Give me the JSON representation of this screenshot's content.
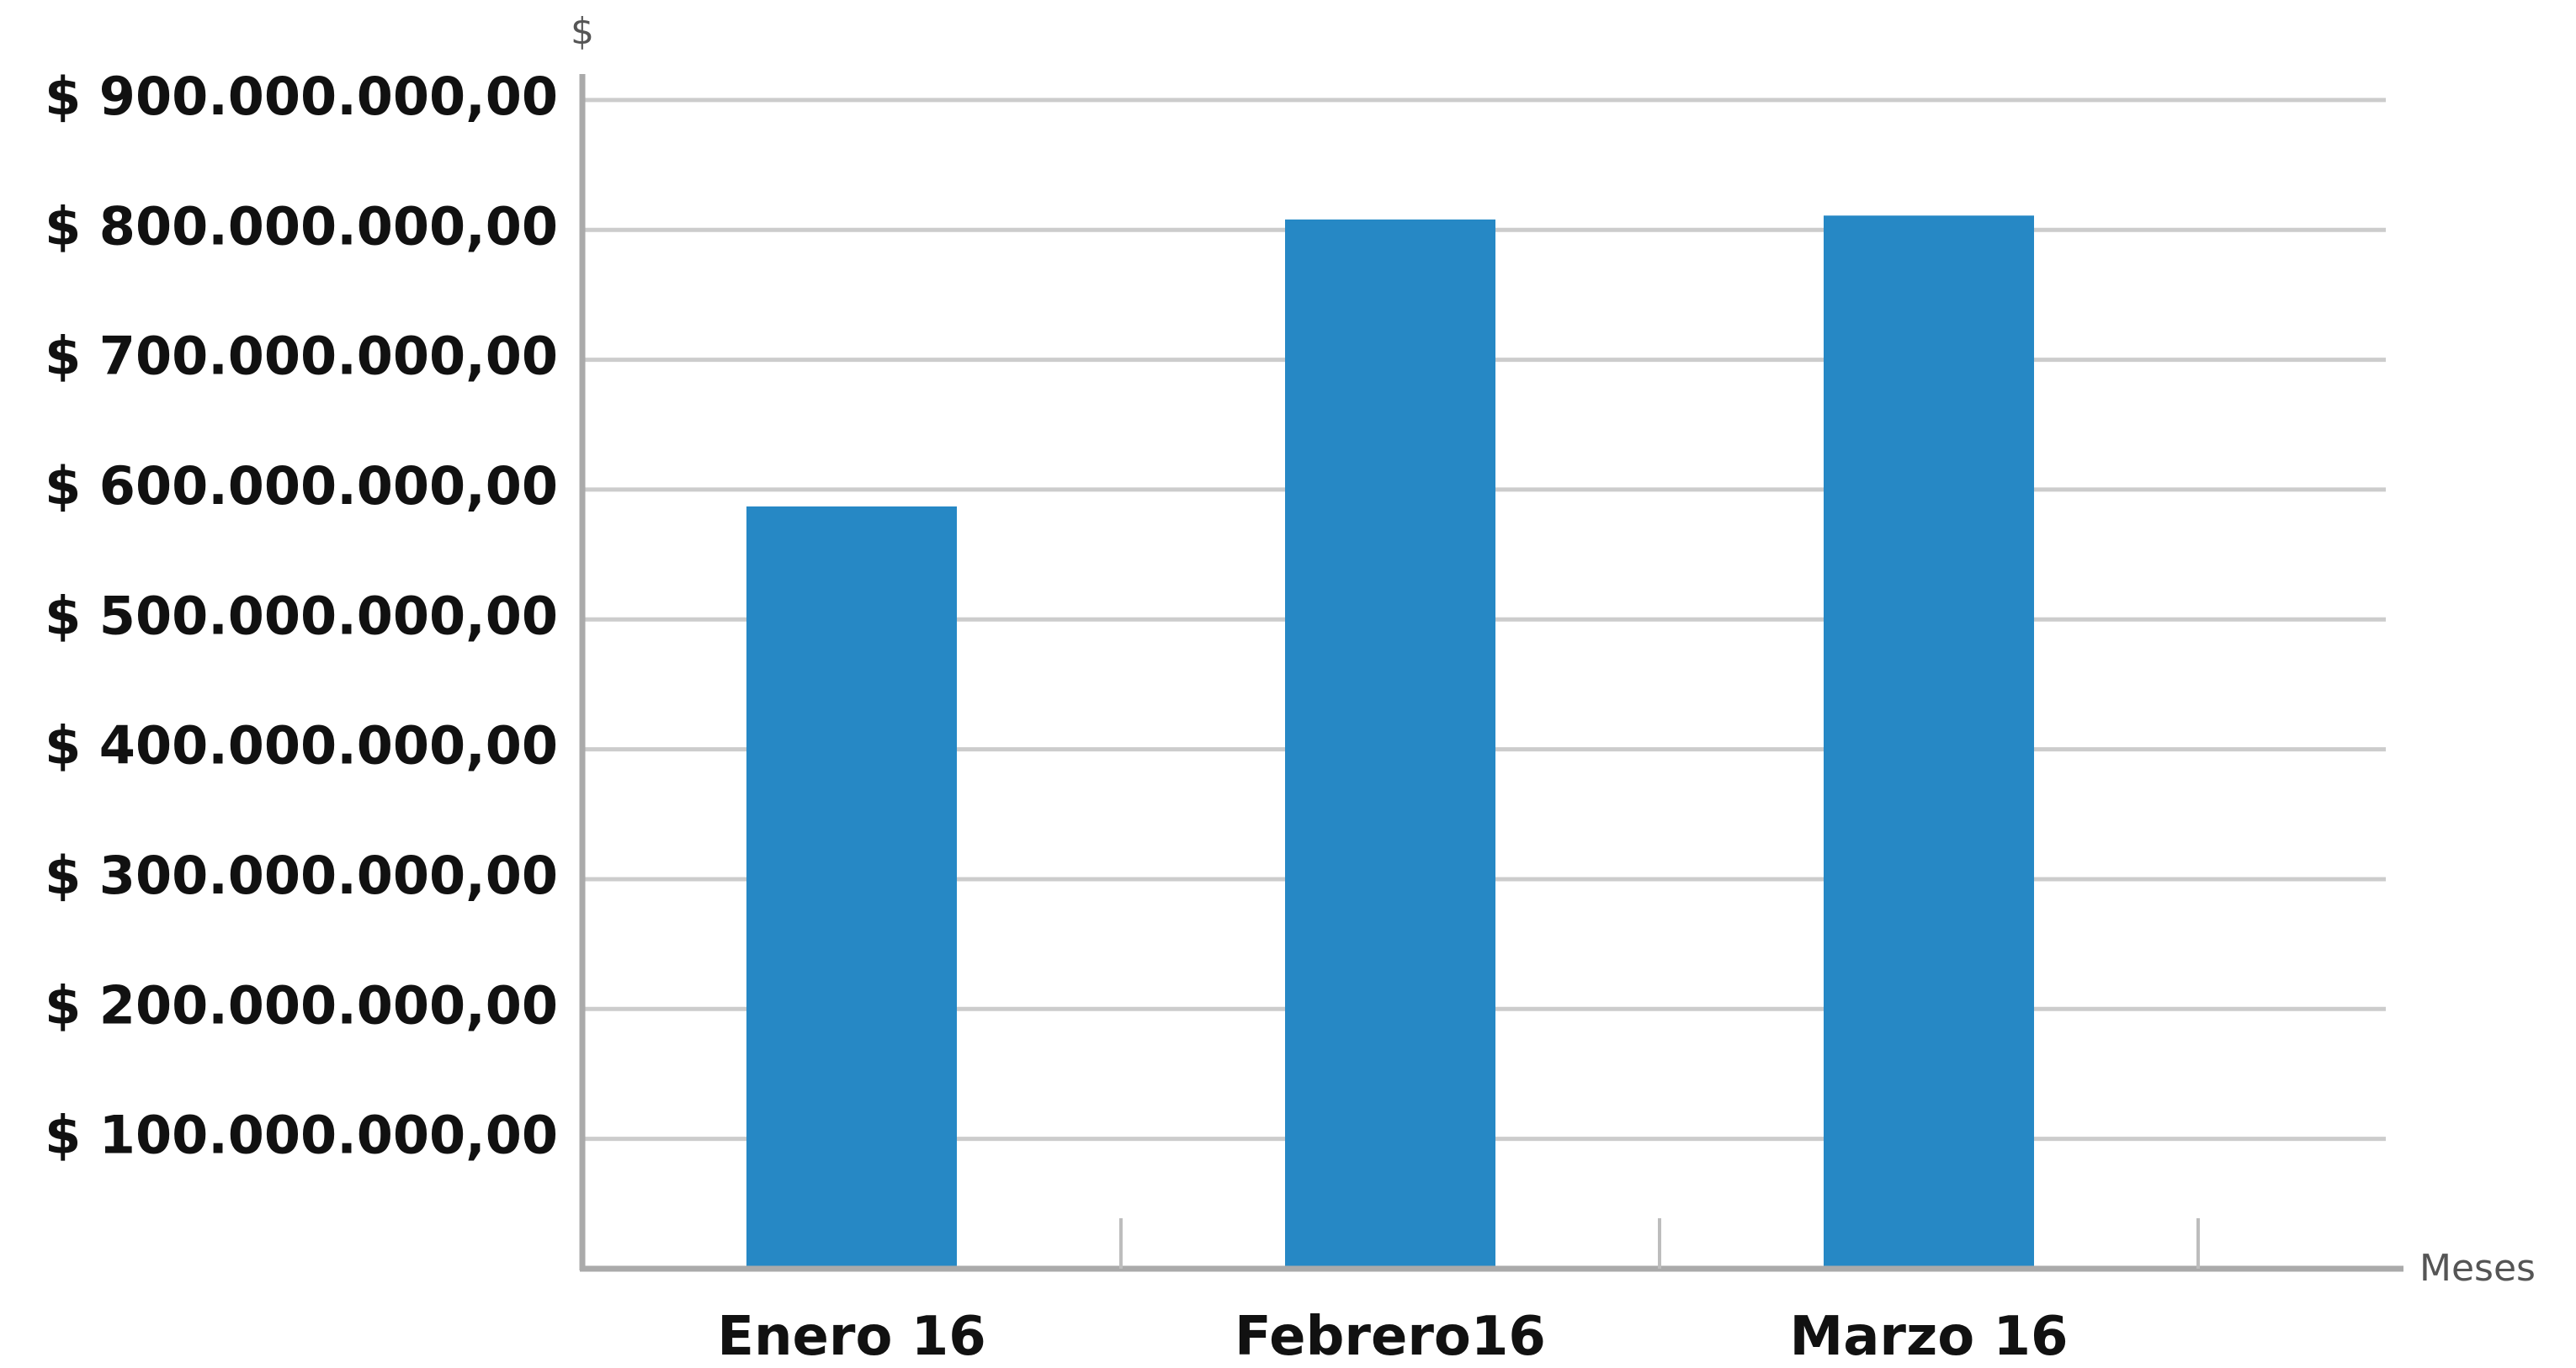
{
  "chart_data": {
    "type": "bar",
    "ylabel": "$",
    "xlabel": "Meses",
    "categories": [
      "Enero 16",
      "Febrero16",
      "Marzo 16"
    ],
    "series": [
      {
        "values": [
          587000000,
          808000000,
          811000000
        ]
      }
    ],
    "ylim": [
      0,
      920000000
    ],
    "yticks": [
      100000000,
      200000000,
      300000000,
      400000000,
      500000000,
      600000000,
      700000000,
      800000000,
      900000000
    ],
    "ytick_labels": [
      "$ 100.000.000,00",
      "$ 200.000.000,00",
      "$ 300.000.000,00",
      "$ 400.000.000,00",
      "$ 500.000.000,00",
      "$ 600.000.000,00",
      "$ 700.000.000,00",
      "$ 800.000.000,00",
      "$ 900.000.000,00"
    ],
    "grid": true,
    "legend": "none",
    "bar_color": "#2688c5"
  }
}
